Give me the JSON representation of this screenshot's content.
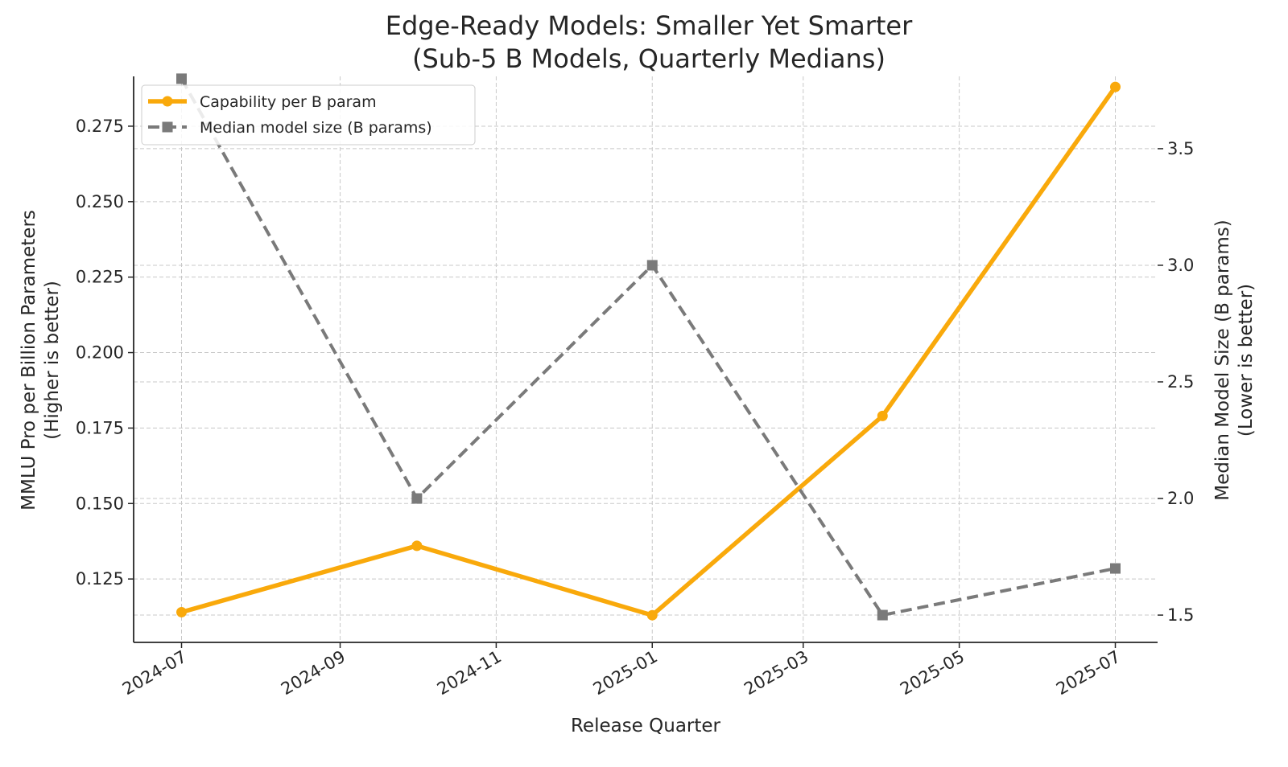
{
  "chart_data": {
    "type": "line",
    "title": "Edge-Ready Models: Smaller Yet Smarter",
    "subtitle": "(Sub-5 B Models, Quarterly Medians)",
    "xlabel": "Release Quarter",
    "ylabel": "MMLU Pro per Billion Parameters",
    "ylabel_sub": "(Higher is better)",
    "y2label": "Median Model Size (B params)",
    "y2label_sub": "(Lower is better)",
    "x": [
      "2024-07-01",
      "2024-10-01",
      "2025-01-01",
      "2025-04-01",
      "2025-07-01"
    ],
    "x_ticks": [
      "2024-07",
      "2024-09",
      "2024-11",
      "2025-01",
      "2025-03",
      "2025-05",
      "2025-07"
    ],
    "y_ticks": [
      "0.125",
      "0.150",
      "0.175",
      "0.200",
      "0.225",
      "0.250",
      "0.275"
    ],
    "y2_ticks": [
      "1.5",
      "2.0",
      "2.5",
      "3.0",
      "3.5"
    ],
    "ylim": [
      0.104,
      0.2915
    ],
    "y2lim": [
      1.383,
      3.81
    ],
    "grid": true,
    "legend_position": "top-left",
    "series": [
      {
        "name": "Capability per B param",
        "axis": "left",
        "color": "#F9A90B",
        "line_style": "solid",
        "marker": "circle",
        "values": [
          0.114,
          0.136,
          0.113,
          0.179,
          0.288
        ]
      },
      {
        "name": "Median model size (B params)",
        "axis": "right",
        "color": "#7A7A7A",
        "line_style": "dashed",
        "marker": "square",
        "values": [
          3.8,
          2.0,
          3.0,
          1.5,
          1.7
        ]
      }
    ]
  }
}
